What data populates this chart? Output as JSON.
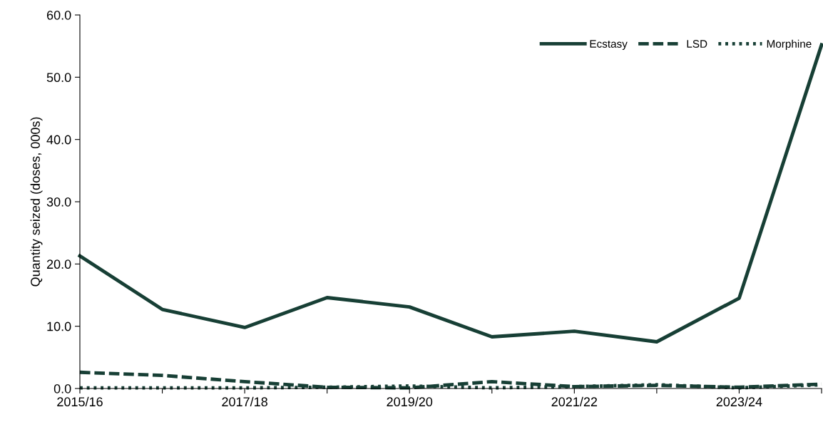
{
  "chart_data": {
    "type": "line",
    "ylabel": "Quantity seized (doses, 000s)",
    "categories": [
      "2015/16",
      null,
      "2017/18",
      null,
      "2019/20",
      null,
      "2021/22",
      null,
      "2023/24",
      null
    ],
    "series": [
      {
        "name": "Ecstasy",
        "color": "#173f35",
        "line_style": "solid",
        "values": [
          21.3,
          12.7,
          9.8,
          14.6,
          13.1,
          8.3,
          9.2,
          7.5,
          14.5,
          55.2
        ]
      },
      {
        "name": "LSD",
        "color": "#173f35",
        "line_style": "dashed",
        "values": [
          2.6,
          2.1,
          1.1,
          0.2,
          0.1,
          1.1,
          0.3,
          0.5,
          0.2,
          0.7
        ]
      },
      {
        "name": "Morphine",
        "color": "#173f35",
        "line_style": "dotted",
        "values": [
          0.1,
          0.1,
          0.1,
          0.2,
          0.4,
          0.1,
          0.3,
          0.6,
          0.1,
          0.6
        ]
      }
    ],
    "ylim": [
      0,
      60
    ],
    "yticks": [
      {
        "value": 0,
        "label": "0.0"
      },
      {
        "value": 10,
        "label": "10.0"
      },
      {
        "value": 20,
        "label": "20.0"
      },
      {
        "value": 30,
        "label": "30.0"
      },
      {
        "value": 40,
        "label": "40.0"
      },
      {
        "value": 50,
        "label": "50.0"
      },
      {
        "value": 60,
        "label": "60.0"
      }
    ],
    "legend": "top right",
    "grid": false,
    "marker": "none"
  }
}
